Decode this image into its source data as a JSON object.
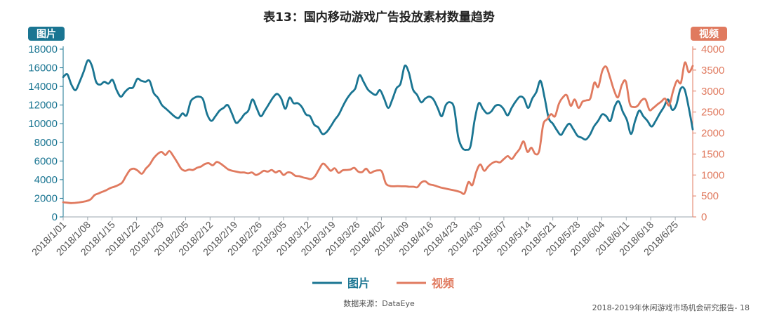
{
  "page": {
    "title": "表13：国内移动游戏广告投放素材数量趋势",
    "source": "数据来源：DataEye",
    "footer": "2018-2019年休闲游戏市场机会研究报告- 18"
  },
  "colors": {
    "image_series": "#1a7592",
    "video_series": "#e07a5f"
  },
  "chart_data": {
    "type": "line",
    "title": "表13：国内移动游戏广告投放素材数量趋势",
    "x_start": "2018/1/01",
    "x_end": "2018/6/30",
    "x_tick_labels": [
      "2018/1/01",
      "2018/1/08",
      "2018/1/15",
      "2018/1/22",
      "2018/1/29",
      "2018/2/05",
      "2018/2/12",
      "2018/2/19",
      "2018/2/26",
      "2018/3/05",
      "2018/3/12",
      "2018/3/19",
      "2018/3/26",
      "2018/4/02",
      "2018/4/09",
      "2018/4/16",
      "2018/4/23",
      "2018/4/30",
      "2018/5/07",
      "2018/5/14",
      "2018/5/21",
      "2018/5/28",
      "2018/6/04",
      "2018/6/11",
      "2018/6/18",
      "2018/6/25"
    ],
    "left_axis": {
      "label": "图片",
      "min": 0,
      "max": 18000,
      "ticks": [
        0,
        2000,
        4000,
        6000,
        8000,
        10000,
        12000,
        14000,
        16000,
        18000
      ]
    },
    "right_axis": {
      "label": "视频",
      "min": 0,
      "max": 4000,
      "ticks": [
        0,
        500,
        1000,
        1500,
        2000,
        2500,
        3000,
        3500,
        4000
      ]
    },
    "legend_position": "bottom",
    "grid": false,
    "series": [
      {
        "name": "图片",
        "axis": "left",
        "values": [
          15000,
          15300,
          14200,
          13600,
          14500,
          15600,
          16800,
          16200,
          14500,
          14200,
          14500,
          14300,
          14700,
          13600,
          12900,
          13400,
          13800,
          13900,
          14800,
          14600,
          14500,
          14600,
          13300,
          12800,
          12000,
          11600,
          11200,
          10800,
          10600,
          11100,
          10900,
          12400,
          12800,
          12900,
          12600,
          11000,
          10300,
          10800,
          11400,
          11700,
          12000,
          11100,
          10100,
          10400,
          11000,
          11400,
          12600,
          11700,
          10800,
          11400,
          12100,
          12800,
          13200,
          12700,
          11600,
          12800,
          12200,
          12200,
          11800,
          11000,
          10800,
          9900,
          9600,
          8900,
          9100,
          9700,
          10400,
          11000,
          11900,
          12700,
          13300,
          13800,
          15200,
          14500,
          13700,
          13300,
          13100,
          13600,
          12700,
          11700,
          12600,
          13800,
          14300,
          16200,
          15500,
          13700,
          13100,
          12300,
          12700,
          12900,
          12600,
          11700,
          10800,
          12000,
          12300,
          11700,
          8600,
          7400,
          7200,
          7600,
          10400,
          12200,
          11600,
          11100,
          11300,
          11900,
          12000,
          11600,
          10900,
          11700,
          12400,
          12900,
          12700,
          11700,
          12700,
          13400,
          14600,
          12800,
          10600,
          10000,
          9300,
          8800,
          9500,
          10000,
          9400,
          8700,
          8500,
          8300,
          8800,
          9700,
          10300,
          11000,
          10800,
          10300,
          11800,
          12400,
          11300,
          10400,
          8900,
          10300,
          11400,
          10800,
          10300,
          9700,
          10300,
          11100,
          11800,
          12600,
          11500,
          12000,
          13700,
          13700,
          11800,
          9400
        ]
      },
      {
        "name": "视频",
        "axis": "right",
        "values": [
          350,
          340,
          330,
          335,
          345,
          360,
          380,
          420,
          520,
          560,
          600,
          640,
          690,
          720,
          760,
          820,
          980,
          1120,
          1150,
          1100,
          1030,
          1150,
          1250,
          1400,
          1500,
          1550,
          1480,
          1570,
          1450,
          1300,
          1150,
          1100,
          1130,
          1120,
          1170,
          1200,
          1260,
          1280,
          1230,
          1310,
          1270,
          1200,
          1130,
          1100,
          1080,
          1060,
          1060,
          1040,
          1060,
          1000,
          1040,
          1100,
          1080,
          1120,
          1060,
          1100,
          1000,
          1060,
          1050,
          980,
          970,
          940,
          920,
          900,
          970,
          1130,
          1270,
          1200,
          1100,
          1160,
          1050,
          1110,
          1120,
          1130,
          1170,
          1080,
          1070,
          1150,
          1050,
          1090,
          1110,
          1080,
          800,
          740,
          730,
          735,
          730,
          730,
          720,
          720,
          710,
          820,
          850,
          780,
          760,
          730,
          700,
          680,
          660,
          640,
          620,
          590,
          560,
          830,
          760,
          1080,
          1250,
          1100,
          1200,
          1280,
          1320,
          1300,
          1380,
          1450,
          1380,
          1500,
          1620,
          1800,
          1550,
          1650,
          1500,
          1580,
          2200,
          2330,
          2450,
          2400,
          2700,
          2850,
          2900,
          2650,
          2800,
          2600,
          2750,
          2780,
          2830,
          3200,
          3100,
          3480,
          3580,
          3320,
          3020,
          2850,
          3150,
          3230,
          2700,
          2620,
          2650,
          2780,
          2800,
          2550,
          2600,
          2680,
          2750,
          2820,
          2660,
          3000,
          3250,
          3200,
          3680,
          3450,
          3600
        ]
      }
    ],
    "legend": [
      {
        "name": "图片"
      },
      {
        "name": "视频"
      }
    ]
  }
}
